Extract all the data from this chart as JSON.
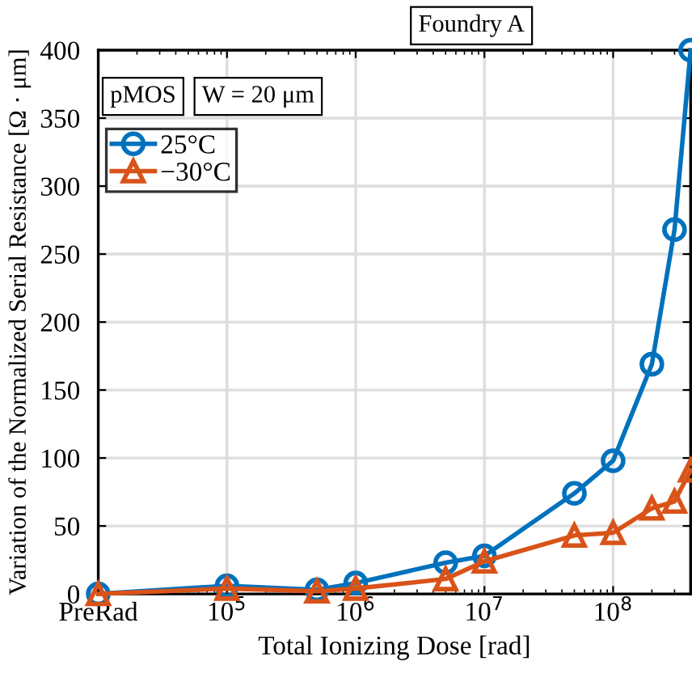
{
  "chart_data": {
    "type": "line",
    "xlabel": "Total Ionizing Dose [rad]",
    "ylabel": "Variation of the Normalized Serial Resistance [Ω · μm]",
    "annotations": [
      "Foundry A",
      "pMOS",
      "W = 20 μm"
    ],
    "x": [
      10000,
      100000,
      500000,
      1000000,
      5000000,
      10000000,
      50000000,
      100000000,
      200000000,
      300000000,
      400000000
    ],
    "series": [
      {
        "name": "25°C",
        "color": "#0072bd",
        "marker": "circle",
        "values": [
          0,
          6,
          3,
          8,
          23,
          28,
          74,
          98,
          169,
          268,
          400
        ]
      },
      {
        "name": "−30°C",
        "color": "#d95319",
        "marker": "triangle",
        "values": [
          0,
          4,
          2,
          4,
          11,
          24,
          43,
          45,
          63,
          68,
          91
        ]
      }
    ],
    "log": "x",
    "xlim": [
      10000,
      400000000
    ],
    "xticks": [
      {
        "value": 10000,
        "label": "PreRad"
      },
      {
        "value": 100000,
        "label": "10$^{5}$"
      },
      {
        "value": 1000000,
        "label": "10$^{6}$"
      },
      {
        "value": 10000000,
        "label": "10$^{7}$"
      },
      {
        "value": 100000000,
        "label": "10$^{8}$"
      }
    ],
    "ylim": [
      0,
      400
    ],
    "yticks": [
      0,
      50,
      100,
      150,
      200,
      250,
      300,
      350,
      400
    ],
    "grid": true,
    "legend": "top left",
    "line_style": "solid"
  }
}
